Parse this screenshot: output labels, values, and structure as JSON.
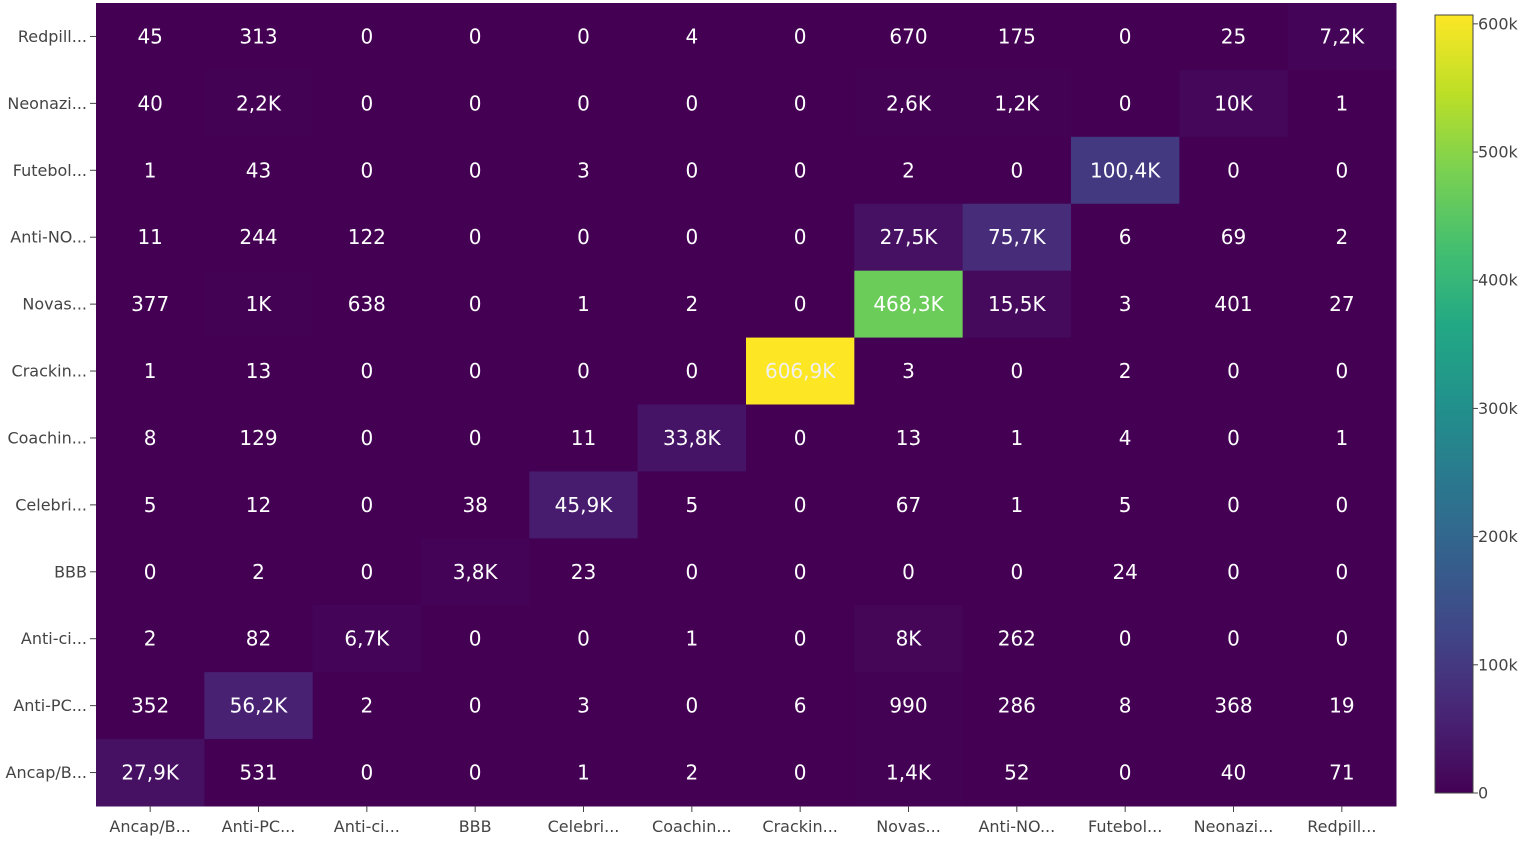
{
  "chart_data": {
    "type": "heatmap",
    "title": "",
    "xlabel": "",
    "ylabel": "",
    "x_categories": [
      "Ancap/B...",
      "Anti-PC...",
      "Anti-ci...",
      "BBB",
      "Celebri...",
      "Coachin...",
      "Crackin...",
      "Novas...",
      "Anti-NO...",
      "Futebol...",
      "Neonazi...",
      "Redpill..."
    ],
    "y_categories": [
      "Redpill...",
      "Neonazi...",
      "Futebol...",
      "Anti-NO...",
      "Novas...",
      "Crackin...",
      "Coachin...",
      "Celebri...",
      "BBB",
      "Anti-ci...",
      "Anti-PC...",
      "Ancap/B..."
    ],
    "values": [
      [
        45,
        313,
        0,
        0,
        0,
        4,
        0,
        670,
        175,
        0,
        25,
        7200
      ],
      [
        40,
        2200,
        0,
        0,
        0,
        0,
        0,
        2600,
        1200,
        0,
        10000,
        1
      ],
      [
        1,
        43,
        0,
        0,
        3,
        0,
        0,
        2,
        0,
        100400,
        0,
        0
      ],
      [
        11,
        244,
        122,
        0,
        0,
        0,
        0,
        27500,
        75700,
        6,
        69,
        2
      ],
      [
        377,
        1000,
        638,
        0,
        1,
        2,
        0,
        468300,
        15500,
        3,
        401,
        27
      ],
      [
        1,
        13,
        0,
        0,
        0,
        0,
        606900,
        3,
        0,
        2,
        0,
        0
      ],
      [
        8,
        129,
        0,
        0,
        11,
        33800,
        0,
        13,
        1,
        4,
        0,
        1
      ],
      [
        5,
        12,
        0,
        38,
        45900,
        5,
        0,
        67,
        1,
        5,
        0,
        0
      ],
      [
        0,
        2,
        0,
        3800,
        23,
        0,
        0,
        0,
        0,
        24,
        0,
        0
      ],
      [
        2,
        82,
        6700,
        0,
        0,
        1,
        0,
        8000,
        262,
        0,
        0,
        0
      ],
      [
        352,
        56200,
        2,
        0,
        3,
        0,
        6,
        990,
        286,
        8,
        368,
        19
      ],
      [
        27900,
        531,
        0,
        0,
        1,
        2,
        0,
        1400,
        52,
        0,
        40,
        71
      ]
    ],
    "text": [
      [
        "45",
        "313",
        "0",
        "0",
        "0",
        "4",
        "0",
        "670",
        "175",
        "0",
        "25",
        "7,2K"
      ],
      [
        "40",
        "2,2K",
        "0",
        "0",
        "0",
        "0",
        "0",
        "2,6K",
        "1,2K",
        "0",
        "10K",
        "1"
      ],
      [
        "1",
        "43",
        "0",
        "0",
        "3",
        "0",
        "0",
        "2",
        "0",
        "100,4K",
        "0",
        "0"
      ],
      [
        "11",
        "244",
        "122",
        "0",
        "0",
        "0",
        "0",
        "27,5K",
        "75,7K",
        "6",
        "69",
        "2"
      ],
      [
        "377",
        "1K",
        "638",
        "0",
        "1",
        "2",
        "0",
        "468,3K",
        "15,5K",
        "3",
        "401",
        "27"
      ],
      [
        "1",
        "13",
        "0",
        "0",
        "0",
        "0",
        "606,9K",
        "3",
        "0",
        "2",
        "0",
        "0"
      ],
      [
        "8",
        "129",
        "0",
        "0",
        "11",
        "33,8K",
        "0",
        "13",
        "1",
        "4",
        "0",
        "1"
      ],
      [
        "5",
        "12",
        "0",
        "38",
        "45,9K",
        "5",
        "0",
        "67",
        "1",
        "5",
        "0",
        "0"
      ],
      [
        "0",
        "2",
        "0",
        "3,8K",
        "23",
        "0",
        "0",
        "0",
        "0",
        "24",
        "0",
        "0"
      ],
      [
        "2",
        "82",
        "6,7K",
        "0",
        "0",
        "1",
        "0",
        "8K",
        "262",
        "0",
        "0",
        "0"
      ],
      [
        "352",
        "56,2K",
        "2",
        "0",
        "3",
        "0",
        "6",
        "990",
        "286",
        "8",
        "368",
        "19"
      ],
      [
        "27,9K",
        "531",
        "0",
        "0",
        "1",
        "2",
        "0",
        "1,4K",
        "52",
        "0",
        "40",
        "71"
      ]
    ],
    "colorscale": "viridis",
    "zmin": 0,
    "zmax": 606900,
    "colorbar": {
      "ticks": [
        0,
        100000,
        200000,
        300000,
        400000,
        500000,
        600000
      ],
      "tick_labels": [
        "0",
        "100k",
        "200k",
        "300k",
        "400k",
        "500k",
        "600k"
      ]
    },
    "grid": false,
    "legend": "right"
  }
}
